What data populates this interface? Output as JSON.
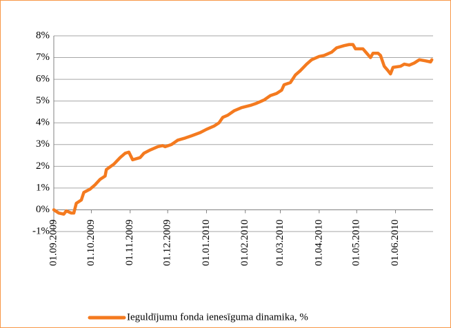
{
  "chart_data": {
    "type": "line",
    "x": [
      "01.09.2009",
      "05.09.2009",
      "09.09.2009",
      "11.09.2009",
      "15.09.2009",
      "17.09.2009",
      "19.09.2009",
      "23.09.2009",
      "25.09.2009",
      "30.09.2009",
      "04.10.2009",
      "08.10.2009",
      "12.10.2009",
      "13.10.2009",
      "19.10.2009",
      "24.10.2009",
      "28.10.2009",
      "31.10.2009",
      "03.11.2009",
      "09.11.2009",
      "12.11.2009",
      "17.11.2009",
      "23.11.2009",
      "27.11.2009",
      "29.11.2009",
      "04.12.2009",
      "09.12.2009",
      "15.12.2009",
      "20.12.2009",
      "27.12.2009",
      "01.01.2010",
      "07.01.2010",
      "11.01.2010",
      "14.01.2010",
      "18.01.2010",
      "23.01.2010",
      "29.01.2010",
      "05.02.2010",
      "10.02.2010",
      "16.02.2010",
      "21.02.2010",
      "26.02.2010",
      "02.03.2010",
      "04.03.2010",
      "09.03.2010",
      "13.03.2010",
      "17.03.2010",
      "22.03.2010",
      "26.03.2010",
      "01.04.2010",
      "05.04.2010",
      "11.04.2010",
      "15.04.2010",
      "21.04.2010",
      "25.04.2010",
      "28.04.2010",
      "30.04.2010",
      "06.05.2010",
      "09.05.2010",
      "12.05.2010",
      "14.05.2010",
      "18.05.2010",
      "20.05.2010",
      "23.05.2010",
      "26.05.2010",
      "28.05.2010",
      "30.05.2010",
      "05.06.2010",
      "08.06.2010",
      "12.06.2010",
      "16.06.2010",
      "20.06.2010",
      "25.06.2010",
      "29.06.2010",
      "30.06.2010"
    ],
    "series": [
      {
        "name": "Ieguldījumu fonda ienesīguma dinamika, %",
        "color": "#f47a1f",
        "values": [
          0,
          -0.15,
          -0.2,
          -0.05,
          -0.15,
          -0.15,
          0.3,
          0.45,
          0.8,
          0.95,
          1.15,
          1.4,
          1.55,
          1.85,
          2.1,
          2.4,
          2.6,
          2.65,
          2.3,
          2.4,
          2.6,
          2.75,
          2.9,
          2.95,
          2.9,
          3.0,
          3.2,
          3.3,
          3.4,
          3.55,
          3.7,
          3.85,
          4.0,
          4.25,
          4.35,
          4.55,
          4.7,
          4.8,
          4.9,
          5.05,
          5.25,
          5.35,
          5.5,
          5.75,
          5.85,
          6.2,
          6.4,
          6.7,
          6.9,
          7.05,
          7.1,
          7.25,
          7.45,
          7.55,
          7.6,
          7.6,
          7.4,
          7.4,
          7.2,
          7.0,
          7.2,
          7.2,
          7.1,
          6.6,
          6.4,
          6.25,
          6.55,
          6.6,
          6.7,
          6.65,
          6.75,
          6.9,
          6.85,
          6.8,
          6.9
        ]
      }
    ],
    "xlim": [
      "01.09.2009",
      "01.07.2010"
    ],
    "xticks": [
      "01.09.2009",
      "01.10.2009",
      "01.11.2009",
      "01.12.2009",
      "01.01.2010",
      "01.02.2010",
      "01.03.2010",
      "01.04.2010",
      "01.05.2010",
      "01.06.2010"
    ],
    "ylim": [
      -1,
      8
    ],
    "yticks": [
      {
        "value": -1,
        "label": "-1%"
      },
      {
        "value": 0,
        "label": "0%"
      },
      {
        "value": 1,
        "label": "1%"
      },
      {
        "value": 2,
        "label": "2%"
      },
      {
        "value": 3,
        "label": "3%"
      },
      {
        "value": 4,
        "label": "4%"
      },
      {
        "value": 5,
        "label": "5%"
      },
      {
        "value": 6,
        "label": "6%"
      },
      {
        "value": 7,
        "label": "7%"
      },
      {
        "value": 8,
        "label": "8%"
      }
    ],
    "grid": true,
    "legend": "bottom"
  }
}
